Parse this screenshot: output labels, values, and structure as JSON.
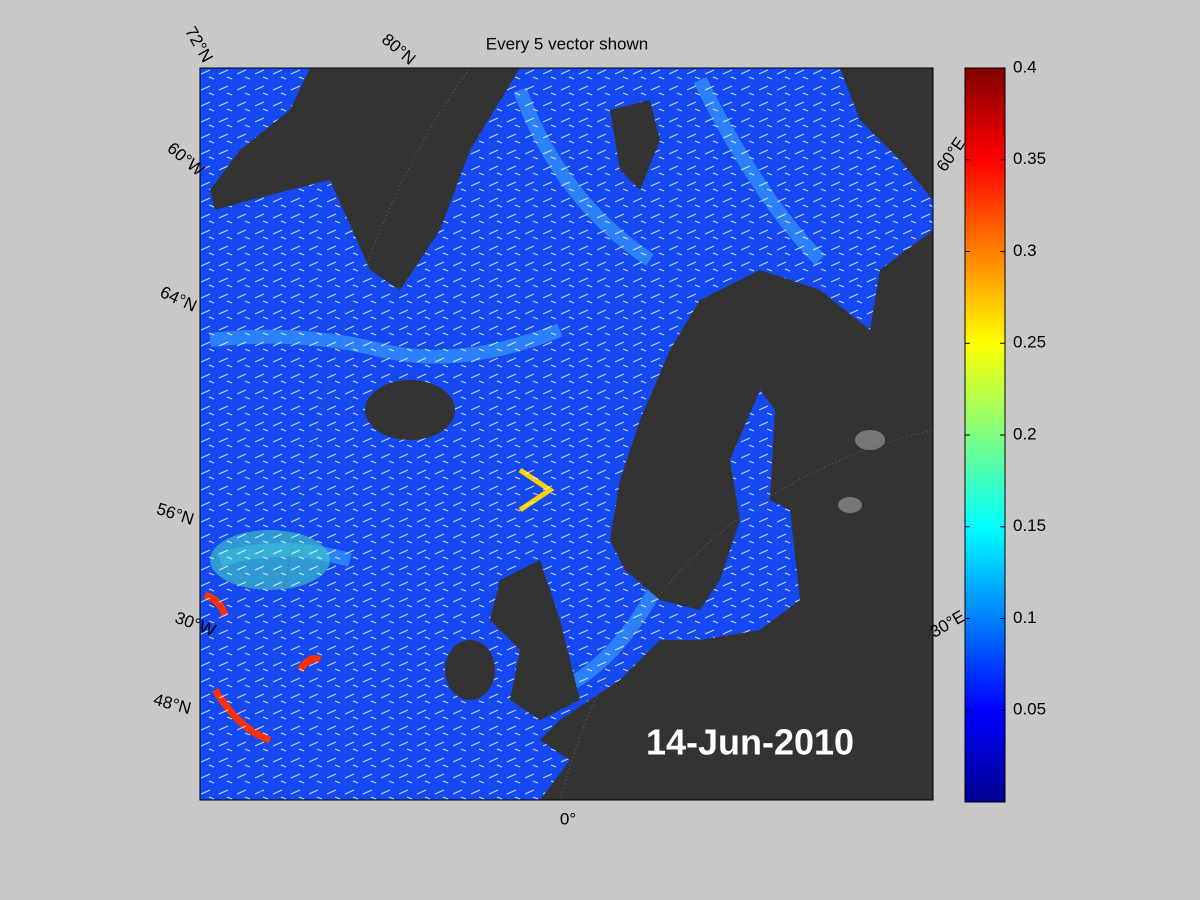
{
  "title": "Every 5 vector shown",
  "date": "14-Jun-2010",
  "graticule_labels": [
    "72°N",
    "80°N",
    "60°W",
    "64°N",
    "56°N",
    "30°W",
    "48°N",
    "0°",
    "60°E",
    "30°E"
  ],
  "colorbar": {
    "lim": [
      0,
      0.4
    ],
    "ticks": [
      0.05,
      0.1,
      0.15,
      0.2,
      0.25,
      0.3,
      0.35,
      0.4
    ]
  }
}
